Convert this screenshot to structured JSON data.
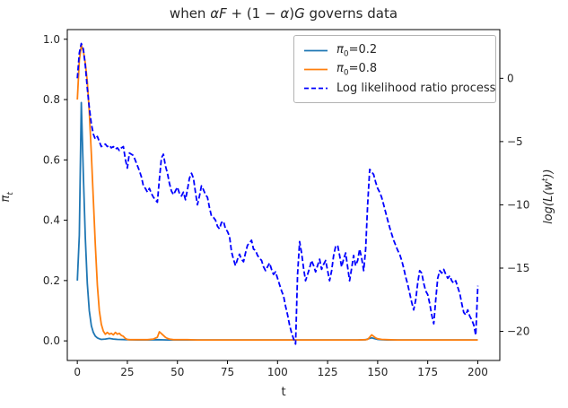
{
  "figure_title_segments": [
    {
      "t": "when ",
      "i": false
    },
    {
      "t": "αF",
      "i": true
    },
    {
      "t": " + (1 − ",
      "i": false
    },
    {
      "t": "α",
      "i": true
    },
    {
      "t": ")",
      "i": false
    },
    {
      "t": "G",
      "i": true
    },
    {
      "t": " governs data",
      "i": false
    }
  ],
  "axes": {
    "xlabel": "t",
    "x_tick_labels": [
      "0",
      "25",
      "50",
      "75",
      "100",
      "125",
      "150",
      "175",
      "200"
    ],
    "x_tick_values": [
      0,
      25,
      50,
      75,
      100,
      125,
      150,
      175,
      200
    ],
    "ylabel_left": {
      "sym": "π",
      "sub": "t"
    },
    "y_left_tick_labels": [
      "0.0",
      "0.2",
      "0.4",
      "0.6",
      "0.8",
      "1.0"
    ],
    "y_left_tick_values": [
      0.0,
      0.2,
      0.4,
      0.6,
      0.8,
      1.0
    ],
    "ylabel_right": {
      "pre": "log(L(w",
      "sup": "t",
      "post": "))"
    },
    "y_right_tick_labels": [
      "0",
      "−5",
      "−10",
      "−15",
      "−20"
    ],
    "y_right_tick_values": [
      0,
      -5,
      -10,
      -15,
      -20
    ]
  },
  "legend": {
    "items": [
      {
        "sym": "π",
        "sub": "0",
        "rest": "=0.2",
        "color": "#1f77b4",
        "dash": false
      },
      {
        "sym": "π",
        "sub": "0",
        "rest": "=0.8",
        "color": "#ff7f0e",
        "dash": false
      },
      {
        "label": "Log likelihood ratio process",
        "color": "#0000ff",
        "dash": true
      }
    ]
  },
  "colors": {
    "pi02": "#1f77b4",
    "pi08": "#ff7f0e",
    "loglik": "#0000ff",
    "axis": "#000000",
    "text": "#262626",
    "legend_border": "#b3b3b3"
  },
  "chart_data": {
    "type": "line",
    "title": "when αF + (1 − α)G governs data",
    "xlabel": "t",
    "ylabel_left": "π_t",
    "ylabel_right": "log(L(w^t))",
    "xlim": [
      -5,
      211
    ],
    "ylim_left": [
      -0.065,
      1.032
    ],
    "ylim_right": [
      -22.3,
      3.85
    ],
    "grid": false,
    "legend_position": "upper right",
    "series": [
      {
        "name": "π0=0.2",
        "axis": "left",
        "color": "#1f77b4",
        "style": "solid",
        "x": [
          0,
          1,
          2,
          3,
          4,
          5,
          6,
          7,
          8,
          9,
          10,
          11,
          12,
          14,
          16,
          18,
          20,
          25,
          30,
          35,
          40,
          45,
          50,
          60,
          70,
          80,
          90,
          100,
          110,
          120,
          130,
          140,
          144,
          146,
          147,
          148,
          150,
          152,
          155,
          160,
          170,
          180,
          190,
          200
        ],
        "y": [
          0.2,
          0.35,
          0.79,
          0.55,
          0.34,
          0.19,
          0.1,
          0.05,
          0.028,
          0.016,
          0.01,
          0.007,
          0.005,
          0.006,
          0.008,
          0.006,
          0.005,
          0.004,
          0.003,
          0.003,
          0.004,
          0.003,
          0.003,
          0.003,
          0.003,
          0.003,
          0.003,
          0.003,
          0.003,
          0.003,
          0.003,
          0.003,
          0.004,
          0.008,
          0.01,
          0.008,
          0.005,
          0.004,
          0.003,
          0.003,
          0.003,
          0.003,
          0.003,
          0.003
        ]
      },
      {
        "name": "π0=0.8",
        "axis": "left",
        "color": "#ff7f0e",
        "style": "solid",
        "x": [
          0,
          1,
          2,
          3,
          4,
          5,
          6,
          7,
          8,
          9,
          10,
          11,
          12,
          13,
          14,
          15,
          16,
          17,
          18,
          19,
          20,
          21,
          22,
          23,
          24,
          25,
          26,
          28,
          30,
          35,
          38,
          40,
          41,
          42,
          43,
          44,
          45,
          46,
          48,
          50,
          55,
          60,
          70,
          80,
          90,
          100,
          110,
          120,
          130,
          140,
          144,
          145,
          146,
          147,
          148,
          149,
          150,
          152,
          155,
          160,
          170,
          180,
          190,
          200
        ],
        "y": [
          0.8,
          0.93,
          0.98,
          0.96,
          0.92,
          0.86,
          0.76,
          0.62,
          0.47,
          0.32,
          0.185,
          0.1,
          0.055,
          0.032,
          0.022,
          0.028,
          0.022,
          0.025,
          0.02,
          0.028,
          0.022,
          0.025,
          0.018,
          0.015,
          0.008,
          0.005,
          0.004,
          0.004,
          0.004,
          0.004,
          0.006,
          0.012,
          0.03,
          0.024,
          0.018,
          0.012,
          0.008,
          0.006,
          0.004,
          0.004,
          0.004,
          0.003,
          0.003,
          0.003,
          0.003,
          0.003,
          0.003,
          0.003,
          0.003,
          0.003,
          0.004,
          0.005,
          0.012,
          0.02,
          0.015,
          0.01,
          0.007,
          0.005,
          0.004,
          0.003,
          0.003,
          0.003,
          0.003,
          0.003
        ]
      },
      {
        "name": "Log likelihood ratio process",
        "axis": "right",
        "color": "#0000ff",
        "style": "dashed",
        "x_start": 0,
        "x_step": 1,
        "y": [
          0.0,
          2.0,
          2.75,
          2.3,
          1.0,
          -0.8,
          -2.3,
          -3.6,
          -4.4,
          -4.8,
          -4.6,
          -5.0,
          -5.4,
          -5.3,
          -5.2,
          -5.4,
          -5.3,
          -5.5,
          -5.4,
          -5.6,
          -5.5,
          -5.7,
          -5.5,
          -5.4,
          -6.4,
          -7.1,
          -5.9,
          -6.0,
          -6.1,
          -6.5,
          -6.9,
          -7.3,
          -7.8,
          -8.5,
          -8.7,
          -9.0,
          -8.7,
          -9.1,
          -9.4,
          -9.6,
          -9.8,
          -8.0,
          -6.3,
          -6.0,
          -6.9,
          -7.5,
          -8.3,
          -8.9,
          -9.2,
          -8.9,
          -8.6,
          -9.1,
          -9.3,
          -9.0,
          -9.6,
          -8.8,
          -7.9,
          -7.5,
          -7.9,
          -9.0,
          -10.0,
          -9.3,
          -8.5,
          -8.8,
          -9.2,
          -9.4,
          -10.2,
          -10.9,
          -11.0,
          -11.2,
          -11.7,
          -11.9,
          -11.4,
          -11.3,
          -11.9,
          -12.1,
          -12.5,
          -13.7,
          -14.3,
          -14.8,
          -14.3,
          -13.9,
          -14.3,
          -14.5,
          -13.8,
          -13.2,
          -13.0,
          -12.8,
          -13.5,
          -13.6,
          -14.0,
          -14.2,
          -14.4,
          -14.9,
          -15.2,
          -14.9,
          -14.6,
          -15.1,
          -15.5,
          -15.3,
          -15.8,
          -16.3,
          -16.8,
          -17.2,
          -18.0,
          -18.7,
          -19.5,
          -20.1,
          -20.6,
          -21.0,
          -15.5,
          -12.9,
          -13.8,
          -15.0,
          -16.0,
          -15.5,
          -15.0,
          -14.4,
          -14.8,
          -15.3,
          -14.8,
          -14.3,
          -15.1,
          -14.7,
          -14.4,
          -15.2,
          -16.0,
          -15.2,
          -14.0,
          -13.3,
          -13.2,
          -14.0,
          -14.9,
          -14.3,
          -13.8,
          -14.9,
          -16.0,
          -15.0,
          -14.0,
          -14.8,
          -14.4,
          -13.5,
          -14.2,
          -15.2,
          -13.5,
          -10.0,
          -7.2,
          -7.4,
          -7.6,
          -8.2,
          -8.7,
          -9.0,
          -9.4,
          -10.0,
          -10.6,
          -11.2,
          -11.8,
          -12.3,
          -12.8,
          -13.2,
          -13.6,
          -13.9,
          -14.4,
          -15.0,
          -15.7,
          -16.3,
          -17.0,
          -17.7,
          -18.3,
          -17.5,
          -16.2,
          -15.2,
          -15.4,
          -16.2,
          -16.8,
          -17.1,
          -17.8,
          -18.7,
          -19.4,
          -17.5,
          -15.8,
          -15.2,
          -15.4,
          -15.1,
          -15.5,
          -15.8,
          -15.6,
          -16.0,
          -16.2,
          -16.0,
          -16.5,
          -17.0,
          -17.8,
          -18.5,
          -18.7,
          -18.3,
          -18.8,
          -19.1,
          -19.5,
          -20.3,
          -16.4
        ]
      }
    ]
  }
}
